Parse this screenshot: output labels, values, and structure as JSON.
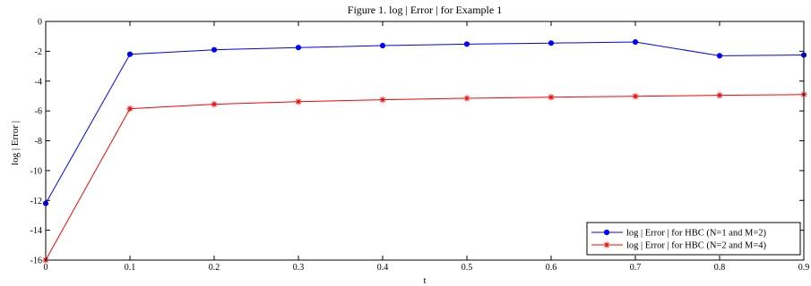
{
  "chart_data": {
    "type": "line",
    "title": "Figure 1. log | Error | for Example 1",
    "xlabel": "t",
    "ylabel": "log | Error |",
    "xlim": [
      0,
      0.9
    ],
    "ylim": [
      -16,
      0
    ],
    "x": [
      0,
      0.1,
      0.2,
      0.3,
      0.4,
      0.5,
      0.6,
      0.7,
      0.8,
      0.9
    ],
    "x_tick_labels": [
      "0",
      "0.1",
      "0.2",
      "0.3",
      "0.4",
      "0.5",
      "0.6",
      "0.7",
      "0.8",
      "0.9"
    ],
    "y_ticks": [
      0,
      -2,
      -4,
      -6,
      -8,
      -10,
      -12,
      -14,
      -16
    ],
    "y_tick_labels": [
      "0",
      "-2",
      "-4",
      "-6",
      "-8",
      "-10",
      "-12",
      "-14",
      "-16"
    ],
    "grid": false,
    "legend_position": "bottom-right",
    "series": [
      {
        "name": "log | Error | for HBC (N=1 and M=2)",
        "color": "#0000ff",
        "marker": "dot",
        "values": [
          -12.2,
          -2.2,
          -1.9,
          -1.75,
          -1.62,
          -1.52,
          -1.45,
          -1.38,
          -2.3,
          -2.25
        ]
      },
      {
        "name": "log | Error | for HBC (N=2 and M=4)",
        "color": "#ff0000",
        "marker": "asterisk",
        "values": [
          -16.0,
          -5.85,
          -5.55,
          -5.38,
          -5.25,
          -5.15,
          -5.08,
          -5.02,
          -4.95,
          -4.9
        ]
      }
    ]
  }
}
